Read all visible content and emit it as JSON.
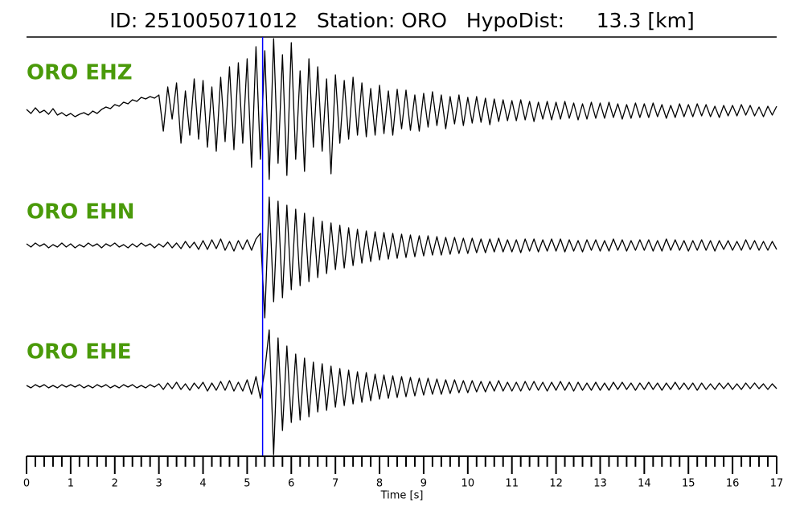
{
  "chart_data": {
    "type": "line",
    "title": "ID: 251005071012   Station: ORO   HypoDist:     13.3 [km]",
    "xlabel": "Time [s]",
    "xlim": [
      0,
      17
    ],
    "xticks": [
      0,
      1,
      2,
      3,
      4,
      5,
      6,
      7,
      8,
      9,
      10,
      11,
      12,
      13,
      14,
      15,
      16,
      17
    ],
    "minor_divisions": 5,
    "ylim": [
      -100,
      100
    ],
    "marker_x": 5.35,
    "marker_color": "#0000ff",
    "label_color": "#4a9a0a",
    "x": [
      0,
      0.1,
      0.2,
      0.3,
      0.4,
      0.5,
      0.6,
      0.7,
      0.8,
      0.9,
      1,
      1.1,
      1.2,
      1.3,
      1.4,
      1.5,
      1.6,
      1.7,
      1.8,
      1.9,
      2,
      2.1,
      2.2,
      2.3,
      2.4,
      2.5,
      2.6,
      2.7,
      2.8,
      2.9,
      3,
      3.1,
      3.2,
      3.3,
      3.4,
      3.5,
      3.6,
      3.7,
      3.8,
      3.9,
      4,
      4.1,
      4.2,
      4.3,
      4.4,
      4.5,
      4.6,
      4.7,
      4.8,
      4.9,
      5,
      5.1,
      5.2,
      5.3,
      5.4,
      5.5,
      5.6,
      5.7,
      5.8,
      5.9,
      6,
      6.1,
      6.2,
      6.3,
      6.4,
      6.5,
      6.6,
      6.7,
      6.8,
      6.9,
      7,
      7.1,
      7.2,
      7.3,
      7.4,
      7.5,
      7.6,
      7.7,
      7.8,
      7.9,
      8,
      8.1,
      8.2,
      8.3,
      8.4,
      8.5,
      8.6,
      8.7,
      8.8,
      8.9,
      9,
      9.1,
      9.2,
      9.3,
      9.4,
      9.5,
      9.6,
      9.7,
      9.8,
      9.9,
      10,
      10.1,
      10.2,
      10.3,
      10.4,
      10.5,
      10.6,
      10.7,
      10.8,
      10.9,
      11,
      11.1,
      11.2,
      11.3,
      11.4,
      11.5,
      11.6,
      11.7,
      11.8,
      11.9,
      12,
      12.1,
      12.2,
      12.3,
      12.4,
      12.5,
      12.6,
      12.7,
      12.8,
      12.9,
      13,
      13.1,
      13.2,
      13.3,
      13.4,
      13.5,
      13.6,
      13.7,
      13.8,
      13.9,
      14,
      14.1,
      14.2,
      14.3,
      14.4,
      14.5,
      14.6,
      14.7,
      14.8,
      14.9,
      15,
      15.1,
      15.2,
      15.3,
      15.4,
      15.5,
      15.6,
      15.7,
      15.8,
      15.9,
      16,
      16.1,
      16.2,
      16.3,
      16.4,
      16.5,
      16.6,
      16.7,
      16.8,
      16.9,
      17
    ],
    "series": [
      {
        "name": "ORO EHZ",
        "color": "#000000",
        "values": [
          2,
          -3,
          4,
          -2,
          1,
          -4,
          3,
          -5,
          -2,
          -6,
          -3,
          -7,
          -4,
          -2,
          -5,
          0,
          -3,
          2,
          5,
          3,
          8,
          6,
          11,
          9,
          14,
          12,
          17,
          15,
          18,
          16,
          20,
          -25,
          30,
          -10,
          35,
          -40,
          25,
          -30,
          40,
          -35,
          38,
          -45,
          30,
          -50,
          42,
          -38,
          55,
          -48,
          60,
          -40,
          65,
          -70,
          80,
          -60,
          75,
          -85,
          90,
          -65,
          70,
          -80,
          85,
          -60,
          50,
          -75,
          65,
          -45,
          55,
          -50,
          40,
          -78,
          45,
          -40,
          38,
          -35,
          42,
          -30,
          35,
          -32,
          28,
          -30,
          32,
          -28,
          25,
          -30,
          27,
          -22,
          26,
          -24,
          20,
          -25,
          22,
          -20,
          24,
          -18,
          20,
          -22,
          18,
          -16,
          20,
          -18,
          17,
          -15,
          18,
          -14,
          16,
          -17,
          15,
          -13,
          14,
          -12,
          13,
          -12,
          14,
          -11,
          12,
          -13,
          11,
          -10,
          12,
          -11,
          11,
          -10,
          12,
          -9,
          10,
          -11,
          9,
          -10,
          11,
          -9,
          10,
          -9,
          11,
          -8,
          9,
          -10,
          8,
          -9,
          10,
          -8,
          9,
          -8,
          10,
          -7,
          8,
          -9,
          7,
          -8,
          9,
          -7,
          8,
          -7,
          9,
          -6,
          8,
          -7,
          6,
          -8,
          7,
          -6,
          7,
          -6,
          8,
          -5,
          7,
          -6,
          5,
          -7,
          6,
          -5,
          6
        ]
      },
      {
        "name": "ORO EHN",
        "color": "#000000",
        "values": [
          2,
          -2,
          3,
          -1,
          2,
          -3,
          1,
          -2,
          3,
          -2,
          2,
          -3,
          1,
          -2,
          3,
          -1,
          2,
          -3,
          2,
          -1,
          3,
          -2,
          1,
          -3,
          2,
          -2,
          3,
          -1,
          2,
          -3,
          2,
          -2,
          4,
          -3,
          3,
          -4,
          5,
          -3,
          4,
          -5,
          6,
          -5,
          7,
          -4,
          8,
          -6,
          5,
          -7,
          6,
          -5,
          7,
          -6,
          8,
          15,
          -90,
          60,
          -70,
          55,
          -65,
          50,
          -55,
          45,
          -50,
          40,
          -45,
          35,
          -40,
          30,
          -35,
          28,
          -30,
          25,
          -28,
          22,
          -25,
          20,
          -22,
          18,
          -20,
          17,
          -18,
          16,
          -17,
          15,
          -16,
          14,
          -15,
          13,
          -14,
          12,
          -13,
          12,
          -12,
          11,
          -12,
          10,
          -11,
          10,
          -10,
          9,
          -10,
          9,
          -9,
          8,
          -9,
          8,
          -8,
          9,
          -8,
          7,
          -8,
          7,
          -9,
          8,
          -7,
          8,
          -8,
          7,
          -7,
          8,
          -7,
          8,
          -8,
          7,
          -7,
          6,
          -8,
          7,
          -6,
          7,
          -7,
          6,
          -7,
          8,
          -6,
          7,
          -7,
          6,
          -6,
          7,
          -6,
          7,
          -7,
          6,
          -7,
          8,
          -6,
          7,
          -6,
          6,
          -7,
          6,
          -6,
          7,
          -6,
          6,
          -7,
          6,
          -5,
          6,
          -6,
          5,
          -6,
          7,
          -5,
          6,
          -6,
          5,
          -6,
          5,
          -5
        ]
      },
      {
        "name": "ORO EHE",
        "color": "#000000",
        "values": [
          1,
          -2,
          2,
          -1,
          2,
          -2,
          1,
          -2,
          2,
          -1,
          2,
          -1,
          2,
          -2,
          1,
          -2,
          2,
          -1,
          2,
          -2,
          1,
          -2,
          2,
          -1,
          2,
          -2,
          1,
          -2,
          2,
          -1,
          3,
          -4,
          4,
          -3,
          5,
          -4,
          3,
          -5,
          4,
          -3,
          5,
          -6,
          4,
          -5,
          6,
          -5,
          7,
          -6,
          5,
          -6,
          8,
          -10,
          12,
          -15,
          20,
          70,
          -85,
          60,
          -55,
          50,
          -45,
          40,
          -42,
          35,
          -38,
          30,
          -32,
          28,
          -30,
          25,
          -26,
          22,
          -24,
          20,
          -22,
          18,
          -20,
          17,
          -18,
          15,
          -16,
          14,
          -15,
          13,
          -14,
          12,
          -13,
          11,
          -12,
          10,
          -11,
          10,
          -10,
          9,
          -10,
          8,
          -9,
          8,
          -8,
          7,
          -8,
          7,
          -7,
          6,
          -7,
          6,
          -6,
          7,
          -6,
          5,
          -6,
          5,
          -6,
          6,
          -5,
          6,
          -5,
          5,
          -6,
          5,
          -5,
          6,
          -5,
          5,
          -6,
          5,
          -5,
          4,
          -5,
          5,
          -5,
          4,
          -5,
          5,
          -4,
          5,
          -4,
          4,
          -5,
          4,
          -4,
          5,
          -4,
          4,
          -5,
          4,
          -4,
          5,
          -4,
          4,
          -4,
          4,
          -5,
          4,
          -4,
          3,
          -4,
          4,
          -3,
          4,
          -4,
          3,
          -4,
          4,
          -3,
          4,
          -3,
          3,
          -4,
          3,
          -3
        ]
      }
    ]
  }
}
